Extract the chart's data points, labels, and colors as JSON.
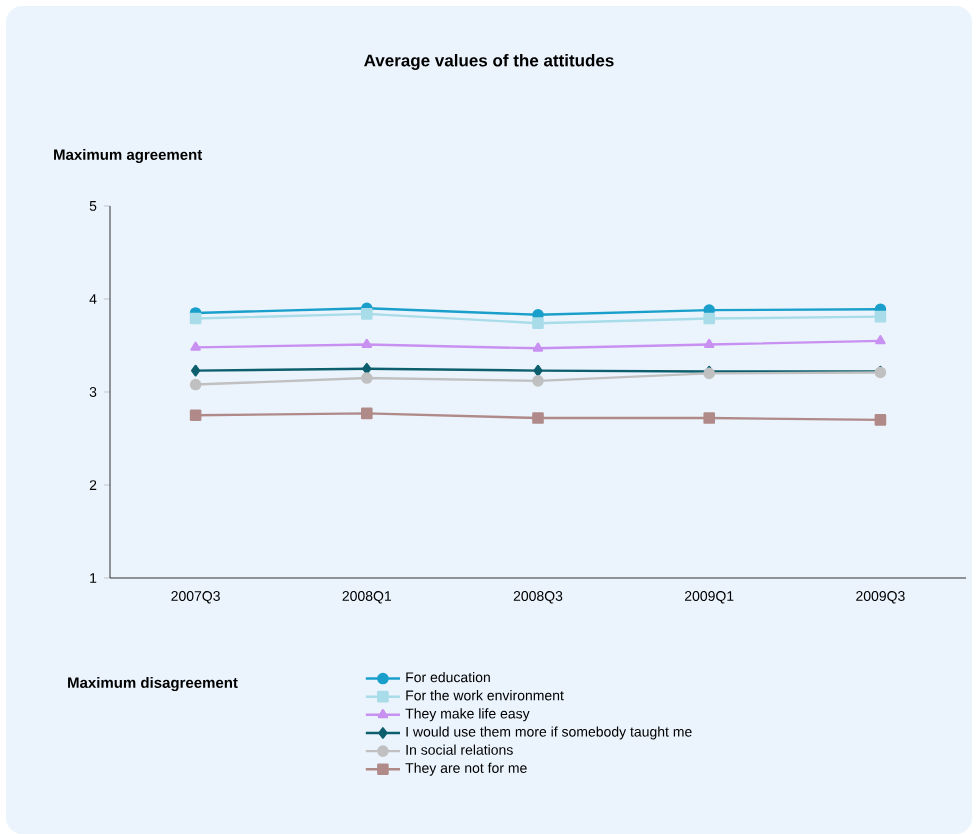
{
  "chart_data": {
    "type": "line",
    "title": "Average values of the attitudes",
    "annotations": [
      "Maximum agreement",
      "Maximum disagreement"
    ],
    "categories": [
      "2007Q3",
      "2008Q1",
      "2008Q3",
      "2009Q1",
      "2009Q3"
    ],
    "series": [
      {
        "name": "For education",
        "color": "#1a9fcb",
        "marker": "circle",
        "values": [
          3.85,
          3.9,
          3.83,
          3.88,
          3.89
        ]
      },
      {
        "name": "For the work environment",
        "color": "#a8dce8",
        "marker": "square",
        "values": [
          3.79,
          3.84,
          3.74,
          3.79,
          3.81
        ]
      },
      {
        "name": "They make life easy",
        "color": "#c890f0",
        "marker": "triangle",
        "values": [
          3.48,
          3.51,
          3.47,
          3.51,
          3.55
        ]
      },
      {
        "name": "I would use them more if somebody taught me",
        "color": "#0d5f6e",
        "marker": "diamond",
        "values": [
          3.23,
          3.25,
          3.23,
          3.22,
          3.22
        ]
      },
      {
        "name": "In social relations",
        "color": "#c0c0c0",
        "marker": "circle",
        "values": [
          3.08,
          3.15,
          3.12,
          3.2,
          3.21
        ]
      },
      {
        "name": "They are not for me",
        "color": "#b08a88",
        "marker": "square",
        "values": [
          2.75,
          2.77,
          2.72,
          2.72,
          2.7
        ]
      }
    ],
    "ylim": [
      1,
      5
    ],
    "yticks": [
      1,
      2,
      3,
      4,
      5
    ],
    "grid": false,
    "legend": "bottom"
  }
}
